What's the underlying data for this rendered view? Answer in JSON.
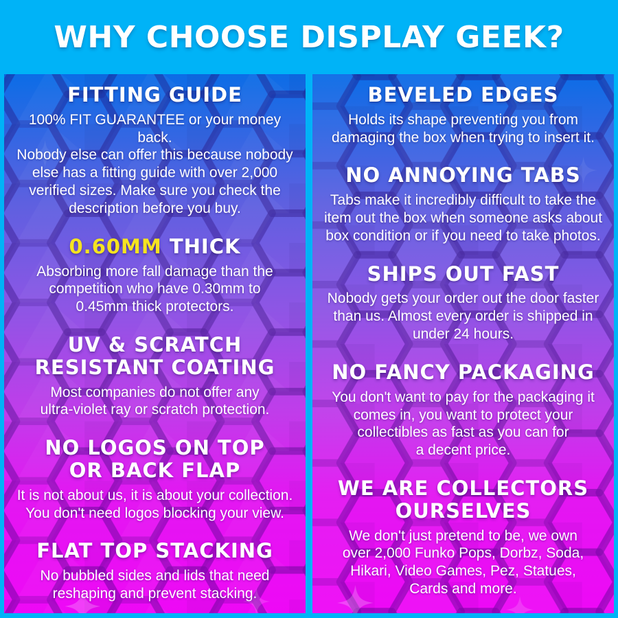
{
  "title": "WHY CHOOSE DISPLAY GEEK?",
  "colors": {
    "page_background": "#00b3f7",
    "text": "#ffffff",
    "accent_yellow": "#f5e320",
    "panel_gradient": [
      "#0c6de6",
      "#5e60e0",
      "#8f55e5",
      "#c13cea",
      "#e317f2",
      "#ee08f6"
    ]
  },
  "columns": {
    "left": {
      "sections": [
        {
          "heading": "FITTING GUIDE",
          "body": "100% FIT GUARANTEE or your money back.\nNobody else can offer this because nobody\nelse has a fitting guide with over 2,000\nverified sizes. Make sure you check the\ndescription before you buy."
        },
        {
          "heading": "0.60MM THICK",
          "heading_accent": "0.60MM",
          "body": "Absorbing more fall damage than the\ncompetition who have 0.30mm to\n0.45mm thick protectors."
        },
        {
          "heading": "UV & SCRATCH\nRESISTANT COATING",
          "body": "Most companies do not offer any\nultra-violet ray or scratch protection."
        },
        {
          "heading": "NO LOGOS ON TOP\nOR BACK FLAP",
          "body": "It is not about us, it is about your collection.\nYou don't need logos blocking your view."
        },
        {
          "heading": "FLAT TOP STACKING",
          "body": "No bubbled sides and lids that need\nreshaping and prevent stacking."
        }
      ]
    },
    "right": {
      "sections": [
        {
          "heading": "BEVELED EDGES",
          "body": "Holds its shape preventing you from\ndamaging the box when trying to insert it."
        },
        {
          "heading": "NO ANNOYING TABS",
          "body": "Tabs make it incredibly difficult to take the\nitem out the box when someone asks about\nbox condition or if you need to take photos."
        },
        {
          "heading": "SHIPS OUT FAST",
          "body": "Nobody gets your order out the door faster\nthan us. Almost every order is shipped in\nunder 24 hours."
        },
        {
          "heading": "NO FANCY PACKAGING",
          "body": "You don't want to pay for the packaging it\ncomes in, you want to protect your\ncollectibles as fast as you can for\na decent price."
        },
        {
          "heading": "WE ARE COLLECTORS\nOURSELVES",
          "body": "We don't just pretend to be, we own\nover 2,000 Funko Pops, Dorbz, Soda,\nHikari, Video Games, Pez, Statues,\nCards and more."
        }
      ]
    }
  }
}
